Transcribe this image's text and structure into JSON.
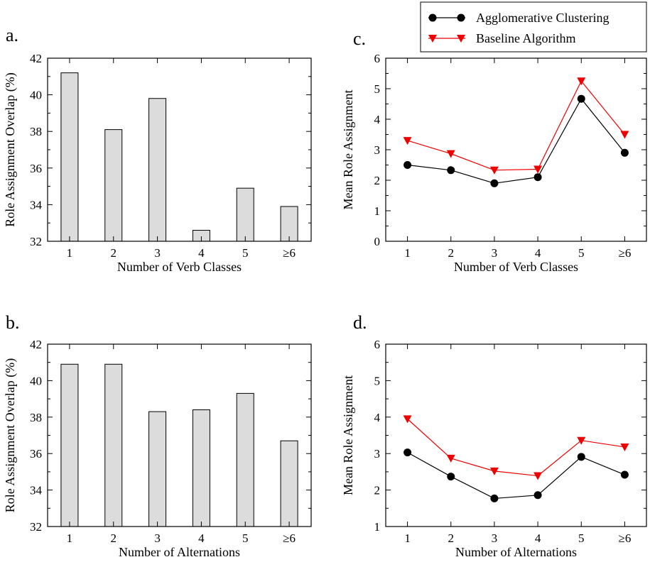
{
  "legend": {
    "entries": [
      {
        "label": "Agglomerative Clustering",
        "color": "#000000",
        "marker": "circle"
      },
      {
        "label": "Baseline Algorithm",
        "color": "#ee0000",
        "marker": "triangle-down"
      }
    ]
  },
  "chart_data": [
    {
      "id": "a",
      "panel_label": "a.",
      "type": "bar",
      "categories": [
        "1",
        "2",
        "3",
        "4",
        "5",
        "≥6"
      ],
      "values": [
        41.2,
        38.1,
        39.8,
        32.6,
        34.9,
        33.9
      ],
      "xlabel": "Number of Verb Classes",
      "ylabel": "Role Assignment Overlap (%)",
      "ylim": [
        32,
        42
      ],
      "yticks": [
        32,
        34,
        36,
        38,
        40,
        42
      ],
      "bar_color": "#dcdcdc",
      "grid": false
    },
    {
      "id": "b",
      "panel_label": "b.",
      "type": "bar",
      "categories": [
        "1",
        "2",
        "3",
        "4",
        "5",
        "≥6"
      ],
      "values": [
        40.9,
        40.9,
        38.3,
        38.4,
        39.3,
        36.7
      ],
      "xlabel": "Number of Alternations",
      "ylabel": "Role Assignment Overlap (%)",
      "ylim": [
        32,
        42
      ],
      "yticks": [
        32,
        34,
        36,
        38,
        40,
        42
      ],
      "bar_color": "#dcdcdc",
      "grid": false
    },
    {
      "id": "c",
      "panel_label": "c.",
      "type": "line",
      "categories": [
        "1",
        "2",
        "3",
        "4",
        "5",
        "≥6"
      ],
      "series": [
        {
          "name": "Agglomerative Clustering",
          "values": [
            2.5,
            2.33,
            1.9,
            2.1,
            4.67,
            2.9
          ]
        },
        {
          "name": "Baseline Algorithm",
          "values": [
            3.3,
            2.87,
            2.33,
            2.36,
            5.25,
            3.5
          ]
        }
      ],
      "xlabel": "Number of Verb Classes",
      "ylabel": "Mean Role Assignment",
      "ylim": [
        0,
        6
      ],
      "yticks": [
        0,
        1,
        2,
        3,
        4,
        5,
        6
      ],
      "grid": false,
      "legend_position": "top-right"
    },
    {
      "id": "d",
      "panel_label": "d.",
      "type": "line",
      "categories": [
        "1",
        "2",
        "3",
        "4",
        "5",
        "≥6"
      ],
      "series": [
        {
          "name": "Agglomerative Clustering",
          "values": [
            3.03,
            2.37,
            1.77,
            1.86,
            2.91,
            2.42
          ]
        },
        {
          "name": "Baseline Algorithm",
          "values": [
            3.95,
            2.87,
            2.52,
            2.39,
            3.36,
            3.18
          ]
        }
      ],
      "xlabel": "Number of Alternations",
      "ylabel": "Mean Role Assignment",
      "ylim": [
        1,
        6
      ],
      "yticks": [
        1,
        2,
        3,
        4,
        5,
        6
      ],
      "grid": false
    }
  ]
}
